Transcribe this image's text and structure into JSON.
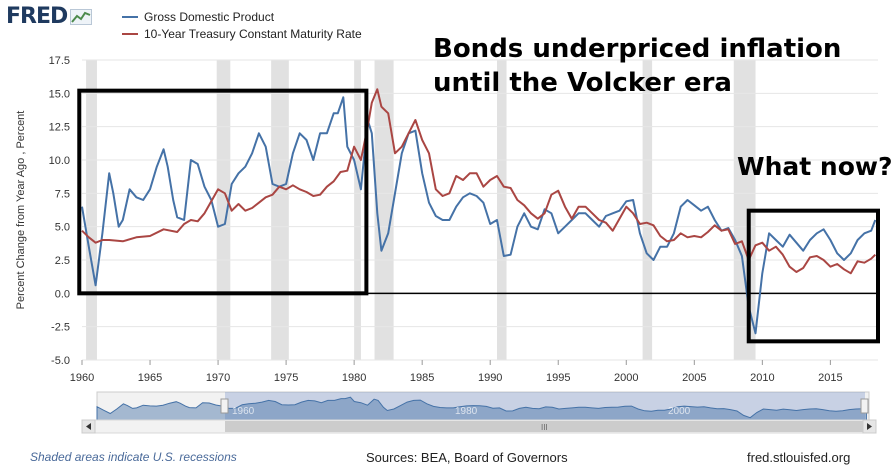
{
  "header": {
    "logo_text": "FRED",
    "logo_icon": "line-graph-icon"
  },
  "legend": [
    {
      "label": "Gross Domestic Product",
      "color": "#4572a7"
    },
    {
      "label": "10-Year Treasury Constant Maturity Rate",
      "color": "#aa4643"
    }
  ],
  "annotations": {
    "bonds_line1": "Bonds underpriced inflation",
    "bonds_line2": "until the Volcker era",
    "what_now": "What now?"
  },
  "footer": {
    "recession_note": "Shaded areas indicate U.S. recessions",
    "sources": "Sources: BEA, Board of Governors",
    "site": "fred.stlouisfed.org"
  },
  "navigator": {
    "left_label": "1960",
    "mid_label": "1980",
    "right_label": "2000",
    "scroll_grip": "III"
  },
  "chart_data": {
    "type": "line",
    "ylabel": "Percent Change from Year Ago , Percent",
    "xlabel": "",
    "xlim": [
      1960,
      2018.5
    ],
    "ylim": [
      -5.0,
      17.5
    ],
    "yticks": [
      "-5.0",
      "-2.5",
      "0.0",
      "2.5",
      "5.0",
      "7.5",
      "10.0",
      "12.5",
      "15.0",
      "17.5"
    ],
    "xticks": [
      "1960",
      "1965",
      "1970",
      "1975",
      "1980",
      "1985",
      "1990",
      "1995",
      "2000",
      "2005",
      "2010",
      "2015"
    ],
    "grid": "horizontal",
    "recessions": [
      [
        1960.3,
        1961.1
      ],
      [
        1969.9,
        1970.9
      ],
      [
        1973.9,
        1975.2
      ],
      [
        1980.0,
        1980.5
      ],
      [
        1981.5,
        1982.9
      ],
      [
        1990.5,
        1991.2
      ],
      [
        2001.2,
        2001.9
      ],
      [
        2007.9,
        2009.5
      ]
    ],
    "boxes": [
      [
        1959.8,
        1980.9,
        15.2,
        0.0
      ],
      [
        2009.0,
        2018.5,
        6.2,
        -3.6
      ]
    ],
    "series": [
      {
        "name": "Gross Domestic Product",
        "color": "#4572a7",
        "x": [
          1960.0,
          1960.5,
          1961.0,
          1961.5,
          1962.0,
          1962.3,
          1962.7,
          1963.0,
          1963.5,
          1964.0,
          1964.5,
          1965.0,
          1965.5,
          1966.0,
          1966.3,
          1966.7,
          1967.0,
          1967.5,
          1968.0,
          1968.5,
          1969.0,
          1969.5,
          1970.0,
          1970.5,
          1971.0,
          1971.5,
          1972.0,
          1972.5,
          1973.0,
          1973.5,
          1974.0,
          1974.5,
          1975.0,
          1975.5,
          1976.0,
          1976.5,
          1977.0,
          1977.5,
          1978.0,
          1978.5,
          1978.8,
          1979.2,
          1979.5,
          1980.0,
          1980.5,
          1981.0,
          1981.3,
          1981.7,
          1982.0,
          1982.5,
          1983.0,
          1983.5,
          1984.0,
          1984.5,
          1985.0,
          1985.5,
          1986.0,
          1986.5,
          1987.0,
          1987.5,
          1988.0,
          1988.5,
          1989.0,
          1989.5,
          1990.0,
          1990.5,
          1991.0,
          1991.5,
          1992.0,
          1992.5,
          1993.0,
          1993.5,
          1994.0,
          1994.5,
          1995.0,
          1995.5,
          1996.0,
          1996.5,
          1997.0,
          1997.5,
          1998.0,
          1998.5,
          1999.0,
          1999.5,
          2000.0,
          2000.5,
          2001.0,
          2001.5,
          2002.0,
          2002.5,
          2003.0,
          2003.5,
          2004.0,
          2004.5,
          2005.0,
          2005.5,
          2006.0,
          2006.5,
          2007.0,
          2007.5,
          2008.0,
          2008.5,
          2009.0,
          2009.5,
          2010.0,
          2010.5,
          2011.0,
          2011.5,
          2012.0,
          2012.5,
          2013.0,
          2013.5,
          2014.0,
          2014.5,
          2015.0,
          2015.5,
          2016.0,
          2016.5,
          2017.0,
          2017.5,
          2018.0,
          2018.3
        ],
        "values": [
          6.5,
          3.5,
          0.6,
          4.5,
          9.0,
          7.5,
          5.0,
          5.5,
          7.8,
          7.2,
          7.0,
          7.8,
          9.5,
          10.8,
          9.5,
          7.0,
          5.7,
          5.5,
          10.0,
          9.7,
          8.0,
          7.0,
          5.0,
          5.2,
          8.2,
          9.0,
          9.5,
          10.5,
          12.0,
          11.0,
          8.2,
          8.0,
          8.2,
          10.5,
          12.0,
          11.5,
          10.0,
          12.0,
          12.0,
          13.5,
          13.5,
          14.7,
          11.0,
          10.0,
          7.8,
          13.0,
          12.0,
          6.0,
          3.2,
          4.5,
          7.5,
          10.5,
          12.0,
          12.2,
          9.0,
          6.8,
          5.8,
          5.5,
          5.5,
          6.5,
          7.2,
          7.5,
          7.3,
          6.8,
          5.2,
          5.5,
          2.8,
          2.9,
          5.0,
          6.0,
          5.0,
          4.8,
          6.3,
          6.0,
          4.5,
          5.0,
          5.5,
          6.0,
          6.0,
          5.5,
          5.0,
          5.8,
          6.0,
          6.2,
          6.9,
          7.0,
          4.5,
          3.0,
          2.5,
          3.5,
          3.5,
          4.5,
          6.5,
          7.0,
          6.6,
          6.2,
          6.5,
          5.5,
          4.7,
          4.9,
          4.0,
          2.8,
          -1.0,
          -3.0,
          1.5,
          4.5,
          4.0,
          3.5,
          4.4,
          3.8,
          3.2,
          4.0,
          4.5,
          4.8,
          4.0,
          3.0,
          2.5,
          3.0,
          4.0,
          4.5,
          4.7,
          5.5
        ]
      },
      {
        "name": "10-Year Treasury Constant Maturity Rate",
        "color": "#aa4643",
        "x": [
          1960.0,
          1960.5,
          1961.0,
          1961.5,
          1962.0,
          1963.0,
          1964.0,
          1965.0,
          1966.0,
          1967.0,
          1967.5,
          1968.0,
          1968.5,
          1969.0,
          1969.5,
          1970.0,
          1970.5,
          1971.0,
          1971.5,
          1972.0,
          1972.5,
          1973.0,
          1973.5,
          1974.0,
          1974.5,
          1975.0,
          1975.5,
          1976.0,
          1976.5,
          1977.0,
          1977.5,
          1978.0,
          1978.5,
          1979.0,
          1979.5,
          1980.0,
          1980.5,
          1981.0,
          1981.3,
          1981.7,
          1982.0,
          1982.5,
          1983.0,
          1983.5,
          1984.0,
          1984.5,
          1985.0,
          1985.5,
          1986.0,
          1986.5,
          1987.0,
          1987.5,
          1988.0,
          1988.5,
          1989.0,
          1989.5,
          1990.0,
          1990.5,
          1991.0,
          1991.5,
          1992.0,
          1992.5,
          1993.0,
          1993.5,
          1994.0,
          1994.5,
          1995.0,
          1995.5,
          1996.0,
          1996.5,
          1997.0,
          1997.5,
          1998.0,
          1998.5,
          1999.0,
          1999.5,
          2000.0,
          2000.5,
          2001.0,
          2001.5,
          2002.0,
          2002.5,
          2003.0,
          2003.5,
          2004.0,
          2004.5,
          2005.0,
          2005.5,
          2006.0,
          2006.5,
          2007.0,
          2007.5,
          2008.0,
          2008.5,
          2009.0,
          2009.5,
          2010.0,
          2010.5,
          2011.0,
          2011.5,
          2012.0,
          2012.5,
          2013.0,
          2013.5,
          2014.0,
          2014.5,
          2015.0,
          2015.5,
          2016.0,
          2016.5,
          2017.0,
          2017.5,
          2018.0,
          2018.3
        ],
        "values": [
          4.7,
          4.2,
          3.8,
          4.0,
          4.0,
          3.9,
          4.2,
          4.3,
          4.8,
          4.6,
          5.2,
          5.5,
          5.4,
          6.0,
          6.9,
          7.8,
          7.5,
          6.2,
          6.7,
          6.2,
          6.4,
          6.8,
          7.2,
          7.4,
          8.0,
          7.8,
          8.1,
          7.8,
          7.6,
          7.3,
          7.4,
          8.0,
          8.4,
          9.1,
          9.2,
          11.0,
          10.0,
          12.5,
          14.3,
          15.3,
          14.0,
          13.5,
          10.5,
          11.0,
          12.0,
          13.0,
          11.5,
          10.5,
          7.8,
          7.3,
          7.5,
          8.8,
          8.5,
          9.0,
          9.0,
          8.0,
          8.5,
          8.8,
          8.0,
          7.9,
          7.0,
          6.6,
          6.0,
          5.6,
          6.0,
          7.4,
          7.7,
          6.5,
          5.6,
          6.5,
          6.5,
          6.0,
          5.5,
          5.3,
          4.7,
          5.6,
          6.5,
          6.0,
          5.2,
          5.3,
          5.1,
          4.3,
          3.9,
          4.0,
          4.5,
          4.2,
          4.3,
          4.2,
          4.6,
          5.1,
          4.7,
          4.8,
          3.7,
          3.9,
          2.5,
          3.6,
          3.8,
          3.2,
          3.5,
          2.9,
          2.0,
          1.6,
          1.9,
          2.7,
          2.8,
          2.5,
          2.0,
          2.2,
          1.8,
          1.5,
          2.4,
          2.3,
          2.6,
          2.9
        ]
      }
    ]
  }
}
